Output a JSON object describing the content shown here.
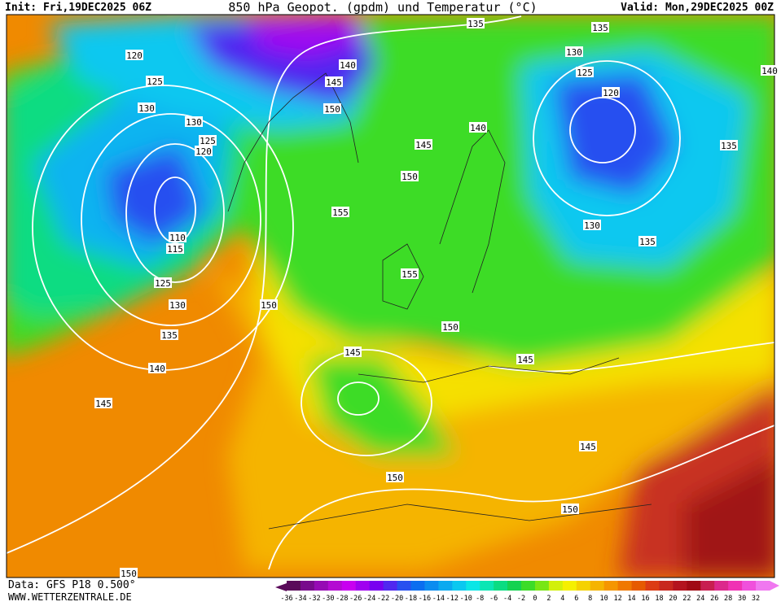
{
  "header": {
    "init": "Init: Fri,19DEC2025 06Z",
    "title": "850 hPa Geopot. (gpdm) und Temperatur (°C)",
    "valid": "Valid: Mon,29DEC2025 00Z"
  },
  "footer": {
    "data": "Data: GFS P18 0.500°",
    "site": "WWW.WETTERZENTRALE.DE"
  },
  "colorbar": {
    "labels": [
      "-36",
      "-34",
      "-32",
      "-30",
      "-28",
      "-26",
      "-24",
      "-22",
      "-20",
      "-18",
      "-16",
      "-14",
      "-12",
      "-10",
      "-8",
      "-6",
      "-4",
      "-2",
      "0",
      "2",
      "4",
      "6",
      "8",
      "10",
      "12",
      "14",
      "16",
      "18",
      "20",
      "22",
      "24",
      "26",
      "28",
      "30",
      "32"
    ],
    "colors": [
      "#5a0a5a",
      "#780a8c",
      "#960ab4",
      "#b40ad2",
      "#c800f0",
      "#a000f0",
      "#7800f0",
      "#5028f0",
      "#2850f0",
      "#0a6ef0",
      "#0a8cf0",
      "#0aaaf0",
      "#0ac8f0",
      "#0ae6e6",
      "#0ae6b4",
      "#0adc82",
      "#14d250",
      "#3cdc28",
      "#78e614",
      "#d2f00a",
      "#f5f000",
      "#f5d200",
      "#f5b400",
      "#f59600",
      "#f07800",
      "#e65a00",
      "#dc3c14",
      "#c8281e",
      "#b4141e",
      "#a00a14",
      "#c81e50",
      "#dc288c",
      "#f032b4",
      "#f050dc",
      "#f078f0"
    ]
  },
  "contour_labels": [
    "120",
    "125",
    "130",
    "130",
    "125",
    "120",
    "110",
    "115",
    "125",
    "130",
    "135",
    "140",
    "145",
    "150",
    "155",
    "150",
    "145",
    "140",
    "140",
    "145",
    "150",
    "135",
    "135",
    "130",
    "125",
    "120",
    "135",
    "130",
    "135",
    "155",
    "150",
    "145",
    "145",
    "145",
    "150",
    "150",
    "150",
    "140"
  ]
}
